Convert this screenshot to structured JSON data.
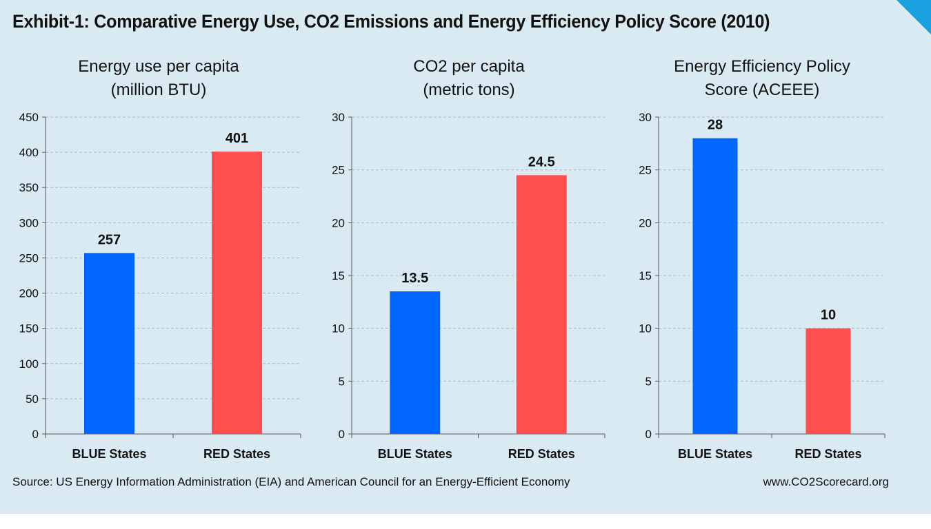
{
  "title": "Exhibit-1: Comparative Energy Use, CO2 Emissions and Energy Efficiency Policy Score (2010)",
  "source": "Source: US Energy Information Administration (EIA) and American Council for an Energy-Efficient Economy",
  "website": "www.CO2Scorecard.org",
  "colors": {
    "blue": "#0066ff",
    "red": "#ff4f4f",
    "background": "#daeaf3",
    "accent": "#1aa0e0"
  },
  "chart_data": [
    {
      "type": "bar",
      "title": "Energy use per capita",
      "subtitle": "(million BTU)",
      "categories": [
        "BLUE States",
        "RED States"
      ],
      "values": [
        257,
        401
      ],
      "data_labels": [
        "257",
        "401"
      ],
      "ylim": [
        0,
        450
      ],
      "yticks": [
        0,
        50,
        100,
        150,
        200,
        250,
        300,
        350,
        400,
        450
      ],
      "grid": true
    },
    {
      "type": "bar",
      "title": "CO2 per capita",
      "subtitle": "(metric tons)",
      "categories": [
        "BLUE States",
        "RED States"
      ],
      "values": [
        13.5,
        24.5
      ],
      "data_labels": [
        "13.5",
        "24.5"
      ],
      "ylim": [
        0,
        30
      ],
      "yticks": [
        0,
        5,
        10,
        15,
        20,
        25,
        30
      ],
      "grid": true
    },
    {
      "type": "bar",
      "title": "Energy Efficiency Policy",
      "subtitle": "Score (ACEEE)",
      "categories": [
        "BLUE States",
        "RED States"
      ],
      "values": [
        28,
        10
      ],
      "data_labels": [
        "28",
        "10"
      ],
      "ylim": [
        0,
        30
      ],
      "yticks": [
        0,
        5,
        10,
        15,
        20,
        25,
        30
      ],
      "grid": true
    }
  ]
}
